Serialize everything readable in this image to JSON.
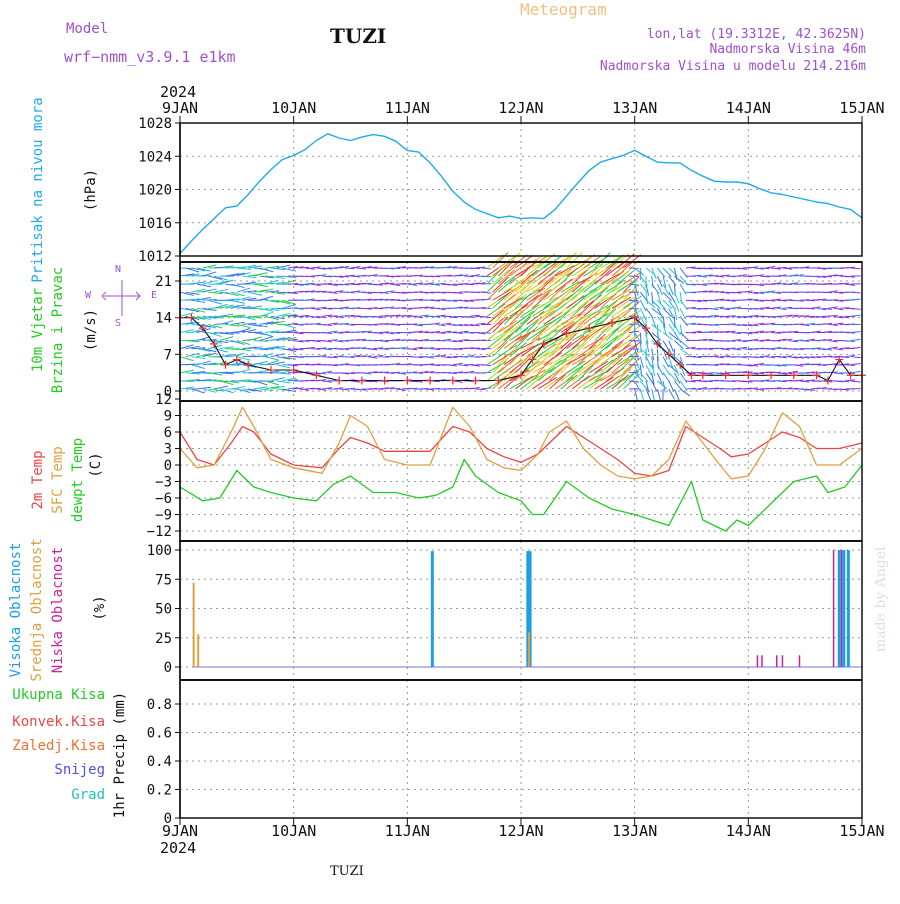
{
  "header": {
    "model_label": "Model",
    "model_name": "wrf−nmm_v3.9.1  e1km",
    "station": "TUZI",
    "meteogram": "Meteogram",
    "lonlat": "lon,lat (19.3312E, 42.3625N)",
    "elevation": "Nadmorska Visina 46m",
    "model_elevation": "Nadmorska Visina u modelu 214.216m",
    "watermark": "made by Angel",
    "footer_station": "TUZI",
    "year_top": "2024",
    "year_bottom": "2024"
  },
  "colors": {
    "pressure": "#1eaaf0",
    "temp2m": "#ee4444",
    "sfc_temp": "#e0a040",
    "dewpoint": "#22cc22",
    "high_cloud": "#1aa0e8",
    "mid_cloud": "#e0a040",
    "low_cloud": "#cc2299",
    "violet": "#a050d0",
    "title_orange": "#f0c080"
  },
  "chart_data": [
    {
      "id": "pressure",
      "type": "line",
      "ylabel_main": "Pritisak na nivou mora",
      "unit": "(hPa)",
      "ylim": [
        1012,
        1028
      ],
      "yticks": [
        "1012",
        "1016",
        "1020",
        "1024",
        "1028"
      ],
      "x_days": [
        "9JAN",
        "10JAN",
        "11JAN",
        "12JAN",
        "13JAN",
        "14JAN",
        "15JAN"
      ],
      "grid": true,
      "series": [
        {
          "x": [
            0,
            0.1,
            0.2,
            0.3,
            0.4,
            0.5,
            0.6,
            0.7,
            0.8,
            0.9,
            1.0,
            1.1,
            1.2,
            1.3,
            1.4,
            1.5,
            1.6,
            1.7,
            1.8,
            1.9,
            2.0,
            2.1,
            2.2,
            2.3,
            2.4,
            2.5,
            2.6,
            2.7,
            2.8,
            2.9,
            3.0,
            3.1,
            3.2,
            3.3,
            3.4,
            3.5,
            3.6,
            3.7,
            3.8,
            3.9,
            4.0,
            4.1,
            4.2,
            4.3,
            4.4,
            4.5,
            4.6,
            4.7,
            4.8,
            4.9,
            5.0,
            5.1,
            5.2,
            5.3,
            5.4,
            5.5,
            5.6,
            5.7,
            5.8,
            5.9,
            6.0
          ],
          "y": [
            1012.3,
            1013.8,
            1015.2,
            1016.5,
            1017.8,
            1018.0,
            1019.4,
            1021.0,
            1022.4,
            1023.6,
            1024.1,
            1024.8,
            1025.9,
            1026.7,
            1026.2,
            1025.9,
            1026.3,
            1026.6,
            1026.4,
            1025.8,
            1024.7,
            1024.5,
            1023.2,
            1021.6,
            1019.8,
            1018.5,
            1017.6,
            1017.1,
            1016.6,
            1016.8,
            1016.5,
            1016.6,
            1016.5,
            1017.6,
            1019.2,
            1020.8,
            1022.3,
            1023.3,
            1023.7,
            1024.1,
            1024.7,
            1024.0,
            1023.3,
            1023.2,
            1023.2,
            1022.3,
            1021.6,
            1021.0,
            1020.9,
            1020.9,
            1020.7,
            1020.1,
            1019.6,
            1019.4,
            1019.1,
            1018.8,
            1018.5,
            1018.3,
            1017.9,
            1017.6,
            1016.6
          ]
        }
      ]
    },
    {
      "id": "wind",
      "type": "line",
      "ylabel_main": "10m Vjetar",
      "ylabel_sub": "Brzina i Pravac",
      "unit": "(m/s)",
      "legend_n": "N",
      "legend_w": "W",
      "legend_e": "E",
      "legend_s": "S",
      "ylim": [
        0,
        24
      ],
      "yticks": [
        "0",
        "7",
        "14",
        "21"
      ],
      "grid": true,
      "series": [
        {
          "name": "speed",
          "x": [
            0,
            0.1,
            0.2,
            0.3,
            0.4,
            0.5,
            0.6,
            0.8,
            1.0,
            1.2,
            1.4,
            1.6,
            1.8,
            2.0,
            2.2,
            2.4,
            2.6,
            2.8,
            3.0,
            3.1,
            3.2,
            3.4,
            3.6,
            3.8,
            4.0,
            4.1,
            4.2,
            4.3,
            4.4,
            4.5,
            4.6,
            4.8,
            5.0,
            5.2,
            5.4,
            5.6,
            5.7,
            5.8,
            5.9,
            6.0
          ],
          "y": [
            14,
            14,
            12,
            9,
            5,
            6,
            5,
            4,
            4,
            3,
            2,
            2,
            2,
            2,
            2,
            2,
            2,
            2,
            3,
            6,
            9,
            11,
            12,
            13,
            14,
            12,
            9,
            7,
            5,
            3,
            3,
            3,
            3,
            3,
            3,
            3,
            2,
            6,
            3,
            3
          ]
        }
      ]
    },
    {
      "id": "temperature",
      "type": "line",
      "ylabel_a": "2m Temp",
      "ylabel_b": "SFC Temp",
      "ylabel_c": "dewpt Temp",
      "unit": "(C)",
      "ylim": [
        -14,
        12
      ],
      "yticks": [
        "12",
        "9",
        "6",
        "3",
        "0",
        "−3",
        "−6",
        "−9",
        "−12"
      ],
      "grid": true,
      "series": [
        {
          "name": "2m Temp",
          "x": [
            0,
            0.15,
            0.3,
            0.45,
            0.55,
            0.65,
            0.8,
            1.0,
            1.25,
            1.4,
            1.5,
            1.65,
            1.8,
            2.0,
            2.2,
            2.4,
            2.55,
            2.7,
            2.85,
            3.0,
            3.15,
            3.25,
            3.4,
            3.55,
            3.7,
            3.85,
            4.0,
            4.15,
            4.3,
            4.45,
            4.6,
            4.75,
            4.85,
            5.0,
            5.15,
            5.3,
            5.45,
            5.6,
            5.8,
            6.0
          ],
          "y": [
            6,
            1,
            0,
            4,
            7,
            6,
            2,
            0,
            -0.5,
            3,
            5,
            4,
            2.5,
            2.5,
            2.5,
            7,
            6,
            3,
            1.5,
            0.5,
            2,
            4,
            7,
            5,
            3,
            1,
            -1.5,
            -2,
            -1,
            7,
            5,
            3,
            1.5,
            2,
            4,
            6,
            5,
            3,
            3,
            4
          ]
        },
        {
          "name": "SFC Temp",
          "x": [
            0,
            0.15,
            0.3,
            0.45,
            0.55,
            0.65,
            0.8,
            1.0,
            1.25,
            1.4,
            1.5,
            1.65,
            1.8,
            2.0,
            2.2,
            2.4,
            2.55,
            2.7,
            2.85,
            3.0,
            3.15,
            3.25,
            3.4,
            3.55,
            3.7,
            3.85,
            4.0,
            4.15,
            4.3,
            4.45,
            4.6,
            4.75,
            4.85,
            5.0,
            5.15,
            5.3,
            5.45,
            5.6,
            5.8,
            6.0
          ],
          "y": [
            3,
            -0.5,
            0,
            6,
            10.5,
            7,
            1,
            -0.5,
            -1.5,
            4,
            9,
            7,
            1,
            0,
            0,
            10.5,
            7,
            1,
            -0.5,
            -1,
            2,
            6,
            8,
            3,
            0,
            -2,
            -2.5,
            -2,
            1,
            8,
            4,
            0,
            -2.5,
            -2,
            3,
            9.5,
            7,
            0,
            0,
            3
          ]
        },
        {
          "name": "dewpt Temp",
          "x": [
            0,
            0.2,
            0.35,
            0.5,
            0.65,
            0.8,
            1.0,
            1.2,
            1.35,
            1.5,
            1.7,
            1.9,
            2.1,
            2.25,
            2.4,
            2.5,
            2.6,
            2.8,
            3.0,
            3.1,
            3.2,
            3.4,
            3.6,
            3.8,
            4.0,
            4.15,
            4.3,
            4.4,
            4.5,
            4.6,
            4.7,
            4.8,
            4.9,
            5.0,
            5.2,
            5.4,
            5.6,
            5.7,
            5.85,
            6.0
          ],
          "y": [
            -4,
            -6.5,
            -6,
            -1,
            -4,
            -5,
            -6,
            -6.5,
            -3.5,
            -2,
            -5,
            -5,
            -6,
            -5.5,
            -4,
            1,
            -2,
            -5,
            -6.5,
            -9,
            -9,
            -3,
            -6,
            -8,
            -9,
            -10,
            -11,
            -7,
            -3,
            -10,
            -11,
            -12,
            -10,
            -11,
            -7,
            -3,
            -2,
            -5,
            -4,
            0
          ]
        }
      ]
    },
    {
      "id": "clouds",
      "type": "bar",
      "ylabel_a": "Visoka Oblacnost",
      "ylabel_b": "Srednja Oblacnost",
      "ylabel_c": "Niska Oblacnost",
      "unit": "(%)",
      "ylim": [
        0,
        100
      ],
      "yticks": [
        "0",
        "25",
        "50",
        "75",
        "100"
      ],
      "grid": true,
      "series": [
        {
          "name": "Visoka Oblacnost",
          "x": [
            2.22,
            3.06,
            3.08,
            5.8,
            5.84,
            5.88
          ],
          "values": [
            99,
            99,
            99,
            100,
            100,
            100
          ]
        },
        {
          "name": "Srednja Oblacnost",
          "x": [
            0.12,
            0.16,
            3.07
          ],
          "values": [
            72,
            28,
            30
          ]
        },
        {
          "name": "Niska Oblacnost",
          "x": [
            5.08,
            5.12,
            5.25,
            5.3,
            5.45,
            5.75,
            5.82
          ],
          "values": [
            10,
            10,
            10,
            10,
            10,
            100,
            100
          ]
        }
      ]
    },
    {
      "id": "precip",
      "type": "bar",
      "label_a": "Ukupna Kisa",
      "label_b": "Konvek.Kisa",
      "label_c": "Zaledj.Kisa",
      "label_d": "Snijeg",
      "label_e": "Grad",
      "unit": "1hr Precip (mm)",
      "ylim": [
        0,
        1
      ],
      "yticks": [
        "0",
        "0.2",
        "0.4",
        "0.6",
        "0.8"
      ],
      "grid": true,
      "series": []
    }
  ]
}
